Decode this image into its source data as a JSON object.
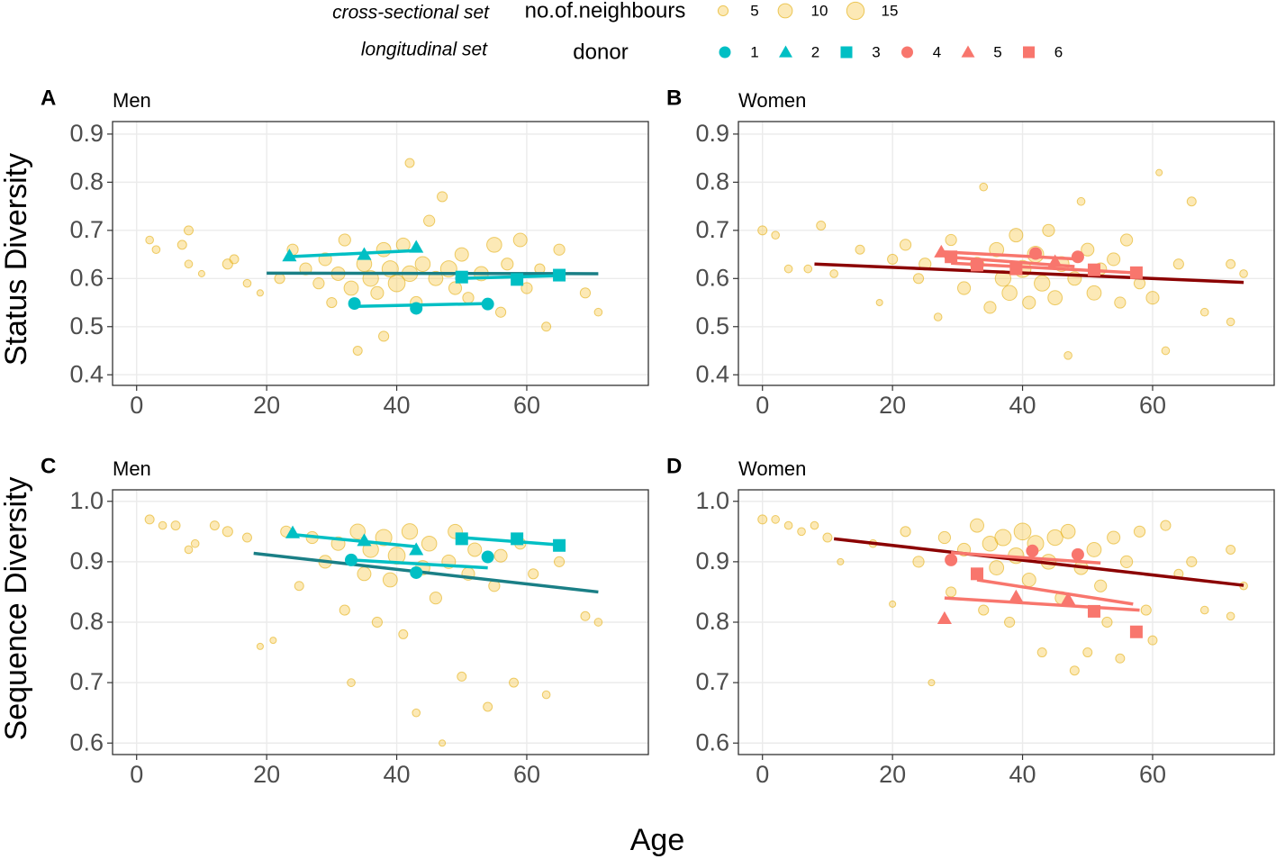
{
  "legend": {
    "cross_title": "cross-sectional set",
    "size_title": "no.of.neighbours",
    "sizes": [
      5,
      10,
      15
    ],
    "long_title": "longitudinal set",
    "donor_title": "donor",
    "donors": [
      {
        "name": "1",
        "color": "#00BFC4",
        "shape": "circle"
      },
      {
        "name": "2",
        "color": "#00BFC4",
        "shape": "triangle"
      },
      {
        "name": "3",
        "color": "#00BFC4",
        "shape": "square"
      },
      {
        "name": "4",
        "color": "#F8766D",
        "shape": "circle"
      },
      {
        "name": "5",
        "color": "#F8766D",
        "shape": "triangle"
      },
      {
        "name": "6",
        "color": "#F8766D",
        "shape": "square"
      }
    ]
  },
  "x_label": "Age",
  "row_labels": [
    "Status Diversity",
    "Sequence Diversity"
  ],
  "chart_data": [
    {
      "type": "scatter",
      "tag": "A",
      "title": "Men",
      "xlim": [
        -3.7,
        78.7
      ],
      "xticks": [
        0,
        20,
        40,
        60
      ],
      "ylim": [
        0.378,
        0.926
      ],
      "yticks": [
        0.4,
        0.5,
        0.6,
        0.7,
        0.8,
        0.9
      ],
      "grid": true,
      "points": {
        "x": [
          2,
          3,
          7,
          8,
          8,
          10,
          14,
          15,
          17,
          19,
          22,
          24,
          26,
          28,
          29,
          30,
          31,
          32,
          33,
          34,
          35,
          36,
          37,
          38,
          38,
          39,
          40,
          41,
          42,
          42,
          43,
          44,
          45,
          46,
          47,
          48,
          49,
          50,
          51,
          53,
          55,
          56,
          57,
          59,
          60,
          62,
          63,
          65,
          69,
          71
        ],
        "y": [
          0.68,
          0.66,
          0.67,
          0.7,
          0.63,
          0.61,
          0.63,
          0.64,
          0.59,
          0.57,
          0.6,
          0.66,
          0.62,
          0.59,
          0.64,
          0.55,
          0.61,
          0.68,
          0.58,
          0.45,
          0.63,
          0.6,
          0.57,
          0.66,
          0.48,
          0.62,
          0.59,
          0.67,
          0.84,
          0.61,
          0.55,
          0.63,
          0.72,
          0.6,
          0.77,
          0.62,
          0.58,
          0.65,
          0.56,
          0.61,
          0.67,
          0.53,
          0.63,
          0.68,
          0.58,
          0.62,
          0.5,
          0.66,
          0.57,
          0.53
        ],
        "size": [
          3,
          3,
          4,
          4,
          3,
          2,
          5,
          4,
          3,
          2,
          5,
          6,
          7,
          6,
          8,
          5,
          9,
          7,
          10,
          4,
          11,
          12,
          8,
          10,
          5,
          13,
          14,
          9,
          4,
          12,
          7,
          11,
          6,
          10,
          5,
          13,
          8,
          9,
          6,
          10,
          11,
          5,
          7,
          9,
          6,
          5,
          4,
          6,
          5,
          3
        ]
      },
      "trend": {
        "color": "#1a7f86",
        "x": [
          20,
          71
        ],
        "y": [
          0.611,
          0.61
        ]
      },
      "series": [
        {
          "color": "#00BFC4",
          "shape": "circle",
          "x": [
            33.5,
            43,
            54
          ],
          "y": [
            0.548,
            0.538,
            0.547
          ],
          "fit_x": [
            33,
            54
          ],
          "fit_y": [
            0.542,
            0.548
          ]
        },
        {
          "color": "#00BFC4",
          "shape": "triangle",
          "x": [
            23.5,
            35,
            43
          ],
          "y": [
            0.647,
            0.65,
            0.665
          ],
          "fit_x": [
            23,
            43
          ],
          "fit_y": [
            0.645,
            0.658
          ]
        },
        {
          "color": "#00BFC4",
          "shape": "square",
          "x": [
            50,
            58.5,
            65
          ],
          "y": [
            0.603,
            0.598,
            0.607
          ],
          "fit_x": [
            49,
            65
          ],
          "fit_y": [
            0.6,
            0.606
          ]
        }
      ]
    },
    {
      "type": "scatter",
      "tag": "B",
      "title": "Women",
      "xlim": [
        -3.7,
        78.7
      ],
      "xticks": [
        0,
        20,
        40,
        60
      ],
      "ylim": [
        0.378,
        0.926
      ],
      "yticks": [
        0.4,
        0.5,
        0.6,
        0.7,
        0.8,
        0.9
      ],
      "grid": true,
      "points": {
        "x": [
          0,
          2,
          4,
          7,
          9,
          11,
          15,
          18,
          20,
          22,
          24,
          25,
          27,
          29,
          31,
          33,
          34,
          35,
          36,
          37,
          38,
          39,
          40,
          41,
          42,
          43,
          44,
          45,
          46,
          47,
          48,
          49,
          50,
          51,
          52,
          54,
          55,
          56,
          58,
          60,
          61,
          62,
          64,
          66,
          68,
          72,
          72,
          74
        ],
        "y": [
          0.7,
          0.69,
          0.62,
          0.62,
          0.71,
          0.61,
          0.66,
          0.55,
          0.64,
          0.67,
          0.6,
          0.63,
          0.52,
          0.68,
          0.58,
          0.63,
          0.79,
          0.54,
          0.66,
          0.6,
          0.57,
          0.69,
          0.62,
          0.55,
          0.65,
          0.59,
          0.7,
          0.56,
          0.63,
          0.44,
          0.6,
          0.76,
          0.66,
          0.57,
          0.62,
          0.64,
          0.55,
          0.68,
          0.59,
          0.56,
          0.82,
          0.45,
          0.63,
          0.76,
          0.53,
          0.63,
          0.51,
          0.61
        ],
        "size": [
          4,
          3,
          3,
          3,
          4,
          3,
          4,
          2,
          5,
          6,
          5,
          7,
          3,
          6,
          8,
          9,
          3,
          7,
          10,
          12,
          11,
          9,
          14,
          8,
          13,
          12,
          7,
          10,
          11,
          3,
          9,
          3,
          8,
          10,
          7,
          8,
          6,
          7,
          6,
          8,
          2,
          3,
          5,
          4,
          3,
          4,
          3,
          3
        ]
      },
      "trend": {
        "color": "#8b0000",
        "x": [
          8,
          74
        ],
        "y": [
          0.63,
          0.592
        ]
      },
      "series": [
        {
          "color": "#F8766D",
          "shape": "circle",
          "x": [
            42,
            48.5
          ],
          "y": [
            0.652,
            0.645
          ],
          "fit_x": [
            28,
            49
          ],
          "fit_y": [
            0.655,
            0.64
          ]
        },
        {
          "color": "#F8766D",
          "shape": "triangle",
          "x": [
            27.5,
            45
          ],
          "y": [
            0.655,
            0.635
          ],
          "fit_x": [
            28,
            48
          ],
          "fit_y": [
            0.645,
            0.625
          ]
        },
        {
          "color": "#F8766D",
          "shape": "square",
          "x": [
            29,
            33,
            39,
            51,
            57.5
          ],
          "y": [
            0.645,
            0.628,
            0.62,
            0.618,
            0.612
          ],
          "fit_x": [
            29,
            57
          ],
          "fit_y": [
            0.632,
            0.612
          ]
        }
      ]
    },
    {
      "type": "scatter",
      "tag": "C",
      "title": "Men",
      "xlim": [
        -3.7,
        78.7
      ],
      "xticks": [
        0,
        20,
        40,
        60
      ],
      "ylim": [
        0.581,
        1.019
      ],
      "yticks": [
        0.6,
        0.7,
        0.8,
        0.9,
        {
          "value": 1,
          "label": "1.0"
        }
      ],
      "grid": true,
      "points": {
        "x": [
          2,
          4,
          6,
          8,
          9,
          12,
          14,
          17,
          19,
          21,
          23,
          25,
          27,
          29,
          31,
          32,
          33,
          34,
          35,
          36,
          37,
          38,
          39,
          40,
          41,
          42,
          43,
          44,
          45,
          46,
          47,
          48,
          49,
          50,
          51,
          52,
          54,
          55,
          56,
          58,
          59,
          61,
          63,
          65,
          69,
          71
        ],
        "y": [
          0.97,
          0.96,
          0.96,
          0.92,
          0.93,
          0.96,
          0.95,
          0.94,
          0.76,
          0.77,
          0.95,
          0.86,
          0.94,
          0.9,
          0.93,
          0.82,
          0.7,
          0.95,
          0.88,
          0.92,
          0.8,
          0.94,
          0.87,
          0.91,
          0.78,
          0.95,
          0.65,
          0.89,
          0.93,
          0.84,
          0.6,
          0.9,
          0.95,
          0.71,
          0.88,
          0.92,
          0.66,
          0.86,
          0.91,
          0.7,
          0.93,
          0.88,
          0.68,
          0.9,
          0.81,
          0.8
        ],
        "size": [
          4,
          3,
          4,
          3,
          3,
          4,
          5,
          4,
          2,
          2,
          6,
          4,
          7,
          8,
          9,
          5,
          3,
          11,
          9,
          12,
          5,
          13,
          10,
          14,
          4,
          12,
          3,
          10,
          11,
          7,
          2,
          9,
          10,
          4,
          8,
          9,
          4,
          6,
          8,
          4,
          6,
          5,
          3,
          5,
          4,
          3
        ]
      },
      "trend": {
        "color": "#1a7f86",
        "x": [
          18,
          71
        ],
        "y": [
          0.914,
          0.85
        ]
      },
      "series": [
        {
          "color": "#00BFC4",
          "shape": "circle",
          "x": [
            33,
            43,
            54
          ],
          "y": [
            0.903,
            0.882,
            0.908
          ],
          "fit_x": [
            33,
            54
          ],
          "fit_y": [
            0.903,
            0.89
          ]
        },
        {
          "color": "#00BFC4",
          "shape": "triangle",
          "x": [
            24,
            35,
            43
          ],
          "y": [
            0.948,
            0.935,
            0.92
          ],
          "fit_x": [
            24,
            43
          ],
          "fit_y": [
            0.945,
            0.925
          ]
        },
        {
          "color": "#00BFC4",
          "shape": "square",
          "x": [
            50,
            58.5,
            65
          ],
          "y": [
            0.938,
            0.938,
            0.927
          ],
          "fit_x": [
            50,
            65
          ],
          "fit_y": [
            0.94,
            0.928
          ]
        }
      ]
    },
    {
      "type": "scatter",
      "tag": "D",
      "title": "Women",
      "xlim": [
        -3.7,
        78.7
      ],
      "xticks": [
        0,
        20,
        40,
        60
      ],
      "ylim": [
        0.581,
        1.019
      ],
      "yticks": [
        0.6,
        0.7,
        0.8,
        0.9,
        {
          "value": 1,
          "label": "1.0"
        }
      ],
      "grid": true,
      "points": {
        "x": [
          0,
          2,
          4,
          6,
          8,
          10,
          12,
          17,
          20,
          22,
          24,
          26,
          28,
          29,
          31,
          33,
          34,
          35,
          36,
          37,
          38,
          39,
          40,
          41,
          42,
          43,
          44,
          45,
          46,
          47,
          48,
          49,
          50,
          51,
          52,
          53,
          54,
          55,
          56,
          58,
          59,
          60,
          62,
          64,
          66,
          68,
          72,
          72,
          74
        ],
        "y": [
          0.97,
          0.97,
          0.96,
          0.95,
          0.96,
          0.94,
          0.9,
          0.93,
          0.83,
          0.95,
          0.9,
          0.7,
          0.94,
          0.85,
          0.92,
          0.96,
          0.82,
          0.93,
          0.89,
          0.94,
          0.8,
          0.91,
          0.95,
          0.87,
          0.93,
          0.75,
          0.9,
          0.94,
          0.84,
          0.95,
          0.72,
          0.89,
          0.75,
          0.92,
          0.86,
          0.8,
          0.94,
          0.74,
          0.9,
          0.95,
          0.82,
          0.77,
          0.96,
          0.88,
          0.9,
          0.82,
          0.92,
          0.81,
          0.86
        ],
        "size": [
          4,
          3,
          3,
          3,
          3,
          4,
          2,
          3,
          2,
          5,
          6,
          2,
          7,
          5,
          8,
          9,
          5,
          11,
          10,
          13,
          5,
          12,
          14,
          9,
          13,
          4,
          11,
          12,
          8,
          10,
          4,
          9,
          4,
          10,
          7,
          5,
          8,
          4,
          7,
          6,
          5,
          4,
          5,
          4,
          5,
          3,
          4,
          3,
          3
        ]
      },
      "trend": {
        "color": "#8b0000",
        "x": [
          11,
          74
        ],
        "y": [
          0.938,
          0.861
        ]
      },
      "series": [
        {
          "color": "#F8766D",
          "shape": "circle",
          "x": [
            29,
            41.5,
            48.5
          ],
          "y": [
            0.903,
            0.918,
            0.912
          ],
          "fit_x": [
            29,
            52
          ],
          "fit_y": [
            0.915,
            0.898
          ]
        },
        {
          "color": "#F8766D",
          "shape": "triangle",
          "x": [
            28,
            39,
            47
          ],
          "y": [
            0.806,
            0.842,
            0.838
          ],
          "fit_x": [
            28,
            58
          ],
          "fit_y": [
            0.84,
            0.82
          ]
        },
        {
          "color": "#F8766D",
          "shape": "square",
          "x": [
            33,
            51,
            57.5
          ],
          "y": [
            0.88,
            0.818,
            0.784
          ],
          "fit_x": [
            33,
            57
          ],
          "fit_y": [
            0.87,
            0.83
          ]
        }
      ]
    }
  ]
}
